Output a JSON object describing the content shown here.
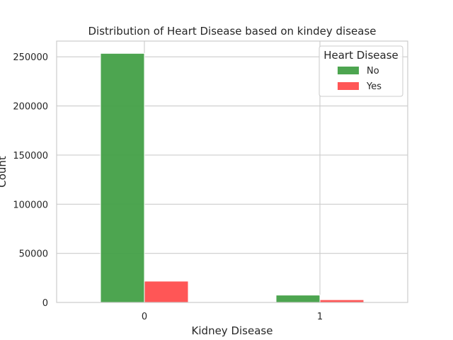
{
  "chart_data": {
    "type": "bar",
    "title": "Distribution of Heart Disease based on kindey disease",
    "xlabel": "Kidney Disease",
    "ylabel": "Count",
    "categories": [
      "0",
      "1"
    ],
    "series": [
      {
        "name": "No",
        "values": [
          253500,
          7500
        ],
        "color": "#43a047"
      },
      {
        "name": "Yes",
        "values": [
          21700,
          2800
        ],
        "color": "#ff4d4d"
      }
    ],
    "ylim": [
      0,
      266000
    ],
    "yticks": [
      0,
      50000,
      100000,
      150000,
      200000,
      250000
    ],
    "grid": true,
    "legend": {
      "title": "Heart Disease",
      "placement": "top-right"
    }
  }
}
